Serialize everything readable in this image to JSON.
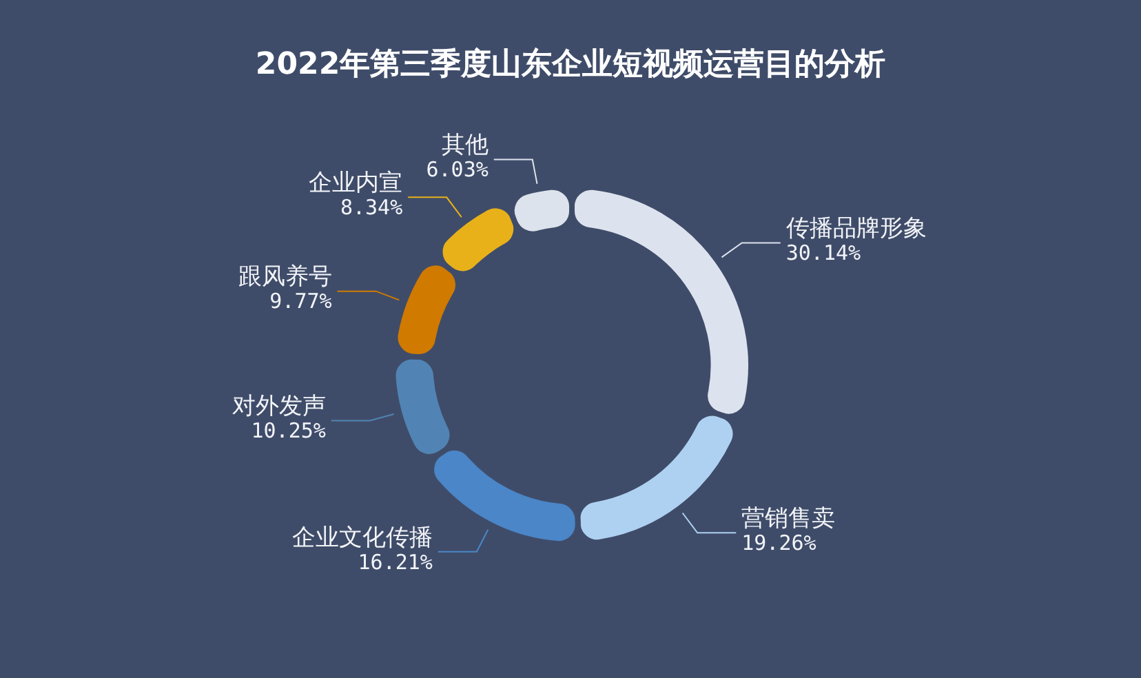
{
  "chart_data": {
    "type": "donut",
    "title": "2022年第三季度山东企业短视频运营目的分析",
    "categories": [
      "传播品牌形象",
      "营销售卖",
      "企业文化传播",
      "对外发声",
      "跟风养号",
      "企业内宣",
      "其他"
    ],
    "values": [
      30.14,
      19.26,
      16.21,
      10.25,
      9.77,
      8.34,
      6.03
    ],
    "colors": [
      "#dde3ee",
      "#aed1f2",
      "#4a86c8",
      "#5184b4",
      "#d07a00",
      "#e8b11a",
      "#dde3ec"
    ],
    "value_labels": [
      "30.14%",
      "19.26%",
      "16.21%",
      "10.25%",
      "9.77%",
      "8.34%",
      "6.03%"
    ],
    "legend": false
  }
}
